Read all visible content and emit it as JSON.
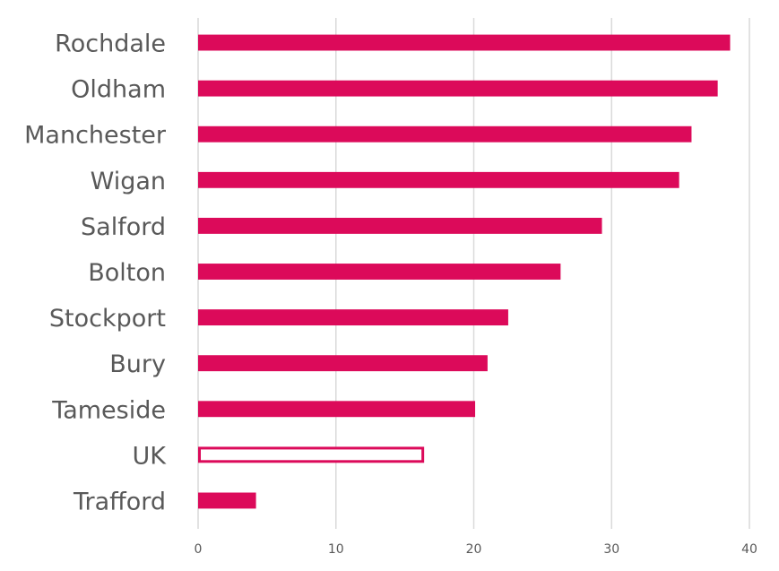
{
  "chart_data": {
    "type": "bar",
    "orientation": "horizontal",
    "title": "",
    "xlabel": "",
    "ylabel": "",
    "categories": [
      "Rochdale",
      "Oldham",
      "Manchester",
      "Wigan",
      "Salford",
      "Bolton",
      "Stockport",
      "Bury",
      "Tameside",
      "UK",
      "Trafford"
    ],
    "values": [
      38.6,
      37.7,
      35.8,
      34.9,
      29.3,
      26.3,
      22.5,
      21.0,
      20.1,
      16.4,
      4.2
    ],
    "highlight": {
      "category": "UK",
      "style": "outline"
    },
    "xlim": [
      0,
      40
    ],
    "xticks": [
      0,
      10,
      20,
      30,
      40
    ],
    "grid": "vertical",
    "legend": "none",
    "colors": {
      "bar": "#dc0a5a",
      "outline_fill": "#ffffff",
      "grid": "#d9d9d9",
      "text": "#595959"
    }
  }
}
